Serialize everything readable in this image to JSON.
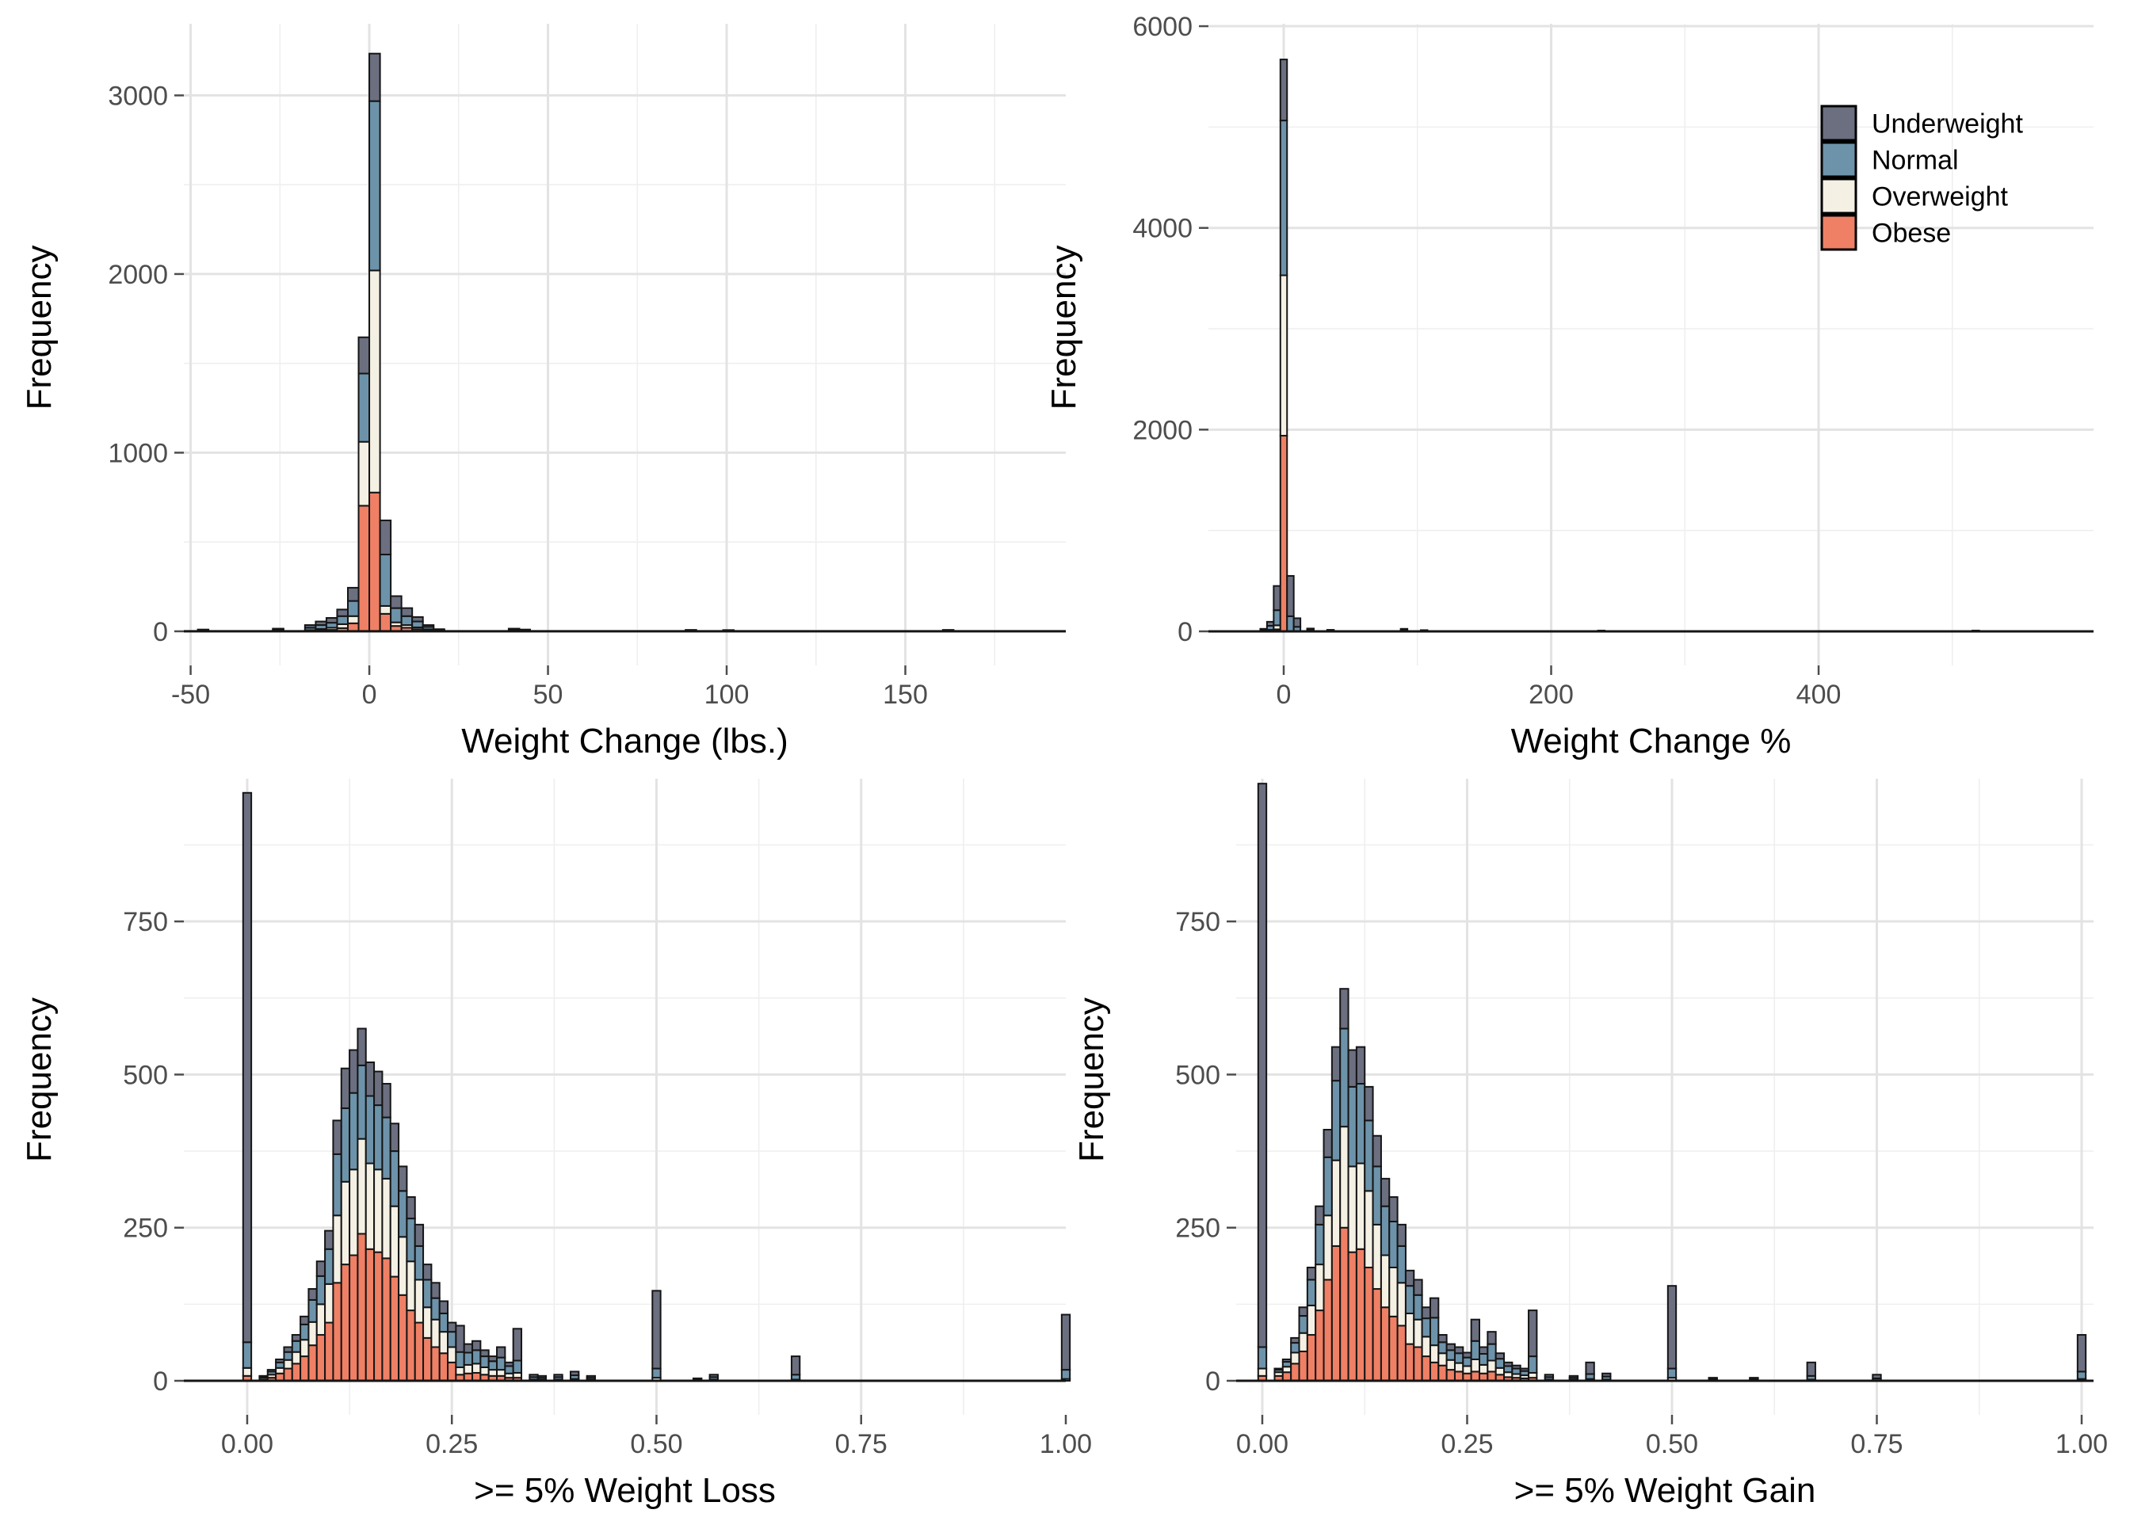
{
  "figure": {
    "kind": "2x2 stacked histogram grid (ggplot style)",
    "background": "#ffffff"
  },
  "palette": {
    "underweight": "#6B6F80",
    "normal": "#6D93AA",
    "overweight": "#F4F0E4",
    "obese": "#EF8065",
    "bar_stroke": "#151515",
    "axis_line": "#151515",
    "grid_major": "#E3E3E3",
    "grid_minor": "#EFEFEF",
    "tick_mark": "#4D4D4D",
    "tick_text": "#4D4D4D",
    "title_text": "#000000"
  },
  "legend": {
    "items": [
      {
        "label": "Underweight",
        "color_key": "underweight"
      },
      {
        "label": "Normal",
        "color_key": "normal"
      },
      {
        "label": "Overweight",
        "color_key": "overweight"
      },
      {
        "label": "Obese",
        "color_key": "obese"
      }
    ]
  },
  "chart_data": {
    "type": "stacked-histogram-grid",
    "stack_order_bottom_to_top": [
      "obese",
      "overweight",
      "normal",
      "underweight"
    ],
    "series_note": "each bin = [bin_start_x, obese, overweight, normal, underweight]",
    "panels": [
      {
        "id": "weight-change-lbs",
        "xlabel": "Weight Change (lbs.)",
        "ylabel": "Frequency",
        "binwidth": 3,
        "xlim": [
          -51.9,
          194.9
        ],
        "ylim": [
          -191,
          3401
        ],
        "x_ticks": [
          -50,
          0,
          50,
          100,
          150
        ],
        "x_tick_labels": [
          "-50",
          "0",
          "50",
          "100",
          "150"
        ],
        "x_minor": [
          -25,
          25,
          75,
          125,
          175
        ],
        "y_ticks": [
          0,
          1000,
          2000,
          3000
        ],
        "y_tick_labels": [
          "0",
          "1000",
          "2000",
          "3000"
        ],
        "y_minor": [
          500,
          1500,
          2500
        ],
        "bins": [
          [
            -48,
            0,
            0,
            3,
            7
          ],
          [
            -27,
            0,
            2,
            6,
            7
          ],
          [
            -18,
            2,
            4,
            14,
            15
          ],
          [
            -15,
            5,
            8,
            22,
            20
          ],
          [
            -12,
            8,
            12,
            28,
            27
          ],
          [
            -9,
            18,
            22,
            45,
            37
          ],
          [
            -6,
            45,
            40,
            85,
            74
          ],
          [
            -3,
            703,
            358,
            382,
            203
          ],
          [
            0,
            777,
            1243,
            948,
            266
          ],
          [
            3,
            98,
            44,
            288,
            191
          ],
          [
            6,
            30,
            20,
            80,
            67
          ],
          [
            9,
            20,
            15,
            50,
            45
          ],
          [
            12,
            12,
            10,
            33,
            25
          ],
          [
            15,
            5,
            6,
            14,
            10
          ],
          [
            18,
            2,
            2,
            4,
            4
          ],
          [
            39,
            0,
            2,
            6,
            7
          ],
          [
            42,
            0,
            2,
            4,
            4
          ],
          [
            88.5,
            0,
            0,
            3,
            5
          ],
          [
            99,
            0,
            0,
            3,
            4
          ],
          [
            160.5,
            0,
            0,
            3,
            5
          ]
        ]
      },
      {
        "id": "weight-change-pct",
        "xlabel": "Weight Change %",
        "ylabel": "Frequency",
        "binwidth": 5,
        "xlim": [
          -56.3,
          605.6
        ],
        "ylim": [
          -338,
          6024
        ],
        "x_ticks": [
          0,
          200,
          400
        ],
        "x_tick_labels": [
          "0",
          "200",
          "400"
        ],
        "x_minor": [
          100,
          300,
          500
        ],
        "y_ticks": [
          0,
          2000,
          4000,
          6000
        ],
        "y_tick_labels": [
          "0",
          "2000",
          "4000",
          "6000"
        ],
        "y_minor": [
          1000,
          3000,
          5000
        ],
        "bins": [
          [
            -17.5,
            0,
            0,
            10,
            15
          ],
          [
            -12.5,
            5,
            10,
            40,
            40
          ],
          [
            -7.5,
            20,
            40,
            150,
            240
          ],
          [
            -2.5,
            1940,
            1590,
            1535,
            605
          ],
          [
            2.5,
            0,
            0,
            150,
            400
          ],
          [
            7.5,
            0,
            0,
            45,
            85
          ],
          [
            17.5,
            0,
            0,
            12,
            16
          ],
          [
            32.5,
            0,
            0,
            6,
            9
          ],
          [
            87.5,
            0,
            0,
            10,
            15
          ],
          [
            102.5,
            0,
            0,
            5,
            7
          ],
          [
            235,
            0,
            0,
            3,
            5
          ],
          [
            515,
            0,
            0,
            3,
            5
          ]
        ]
      },
      {
        "id": "weight-loss-5pct",
        "xlabel": ">= 5% Weight Loss",
        "ylabel": "Frequency",
        "binwidth": 0.01,
        "xlim": [
          -0.0774,
          1.0
        ],
        "ylim": [
          -55.6,
          983
        ],
        "x_ticks": [
          0,
          0.25,
          0.5,
          0.75,
          1.0
        ],
        "x_tick_labels": [
          "0.00",
          "0.25",
          "0.50",
          "0.75",
          "1.00"
        ],
        "x_minor": [
          0.125,
          0.375,
          0.625,
          0.875
        ],
        "y_ticks": [
          0,
          250,
          500,
          750
        ],
        "y_tick_labels": [
          "0",
          "250",
          "500",
          "750"
        ],
        "y_minor": [
          125,
          375,
          625,
          875
        ],
        "bins": [
          [
            -0.005,
            8,
            13,
            42,
            897
          ],
          [
            0.015,
            2,
            3,
            2,
            1
          ],
          [
            0.025,
            5,
            5,
            5,
            3
          ],
          [
            0.035,
            12,
            9,
            9,
            5
          ],
          [
            0.045,
            20,
            14,
            13,
            8
          ],
          [
            0.055,
            28,
            19,
            18,
            10
          ],
          [
            0.065,
            40,
            27,
            25,
            13
          ],
          [
            0.075,
            58,
            38,
            36,
            18
          ],
          [
            0.085,
            75,
            50,
            46,
            24
          ],
          [
            0.095,
            95,
            63,
            57,
            30
          ],
          [
            0.105,
            160,
            110,
            100,
            55
          ],
          [
            0.115,
            190,
            135,
            120,
            65
          ],
          [
            0.125,
            205,
            140,
            125,
            70
          ],
          [
            0.135,
            240,
            155,
            120,
            60
          ],
          [
            0.145,
            215,
            140,
            110,
            55
          ],
          [
            0.155,
            210,
            135,
            105,
            55
          ],
          [
            0.165,
            200,
            130,
            100,
            55
          ],
          [
            0.175,
            170,
            115,
            90,
            45
          ],
          [
            0.185,
            140,
            95,
            75,
            40
          ],
          [
            0.195,
            115,
            80,
            70,
            35
          ],
          [
            0.205,
            95,
            70,
            55,
            35
          ],
          [
            0.215,
            70,
            50,
            45,
            25
          ],
          [
            0.225,
            55,
            45,
            35,
            25
          ],
          [
            0.235,
            45,
            35,
            30,
            20
          ],
          [
            0.245,
            30,
            25,
            25,
            15
          ],
          [
            0.255,
            10,
            12,
            25,
            43
          ],
          [
            0.265,
            12,
            14,
            20,
            14
          ],
          [
            0.275,
            13,
            15,
            22,
            15
          ],
          [
            0.285,
            10,
            12,
            18,
            10
          ],
          [
            0.295,
            8,
            10,
            14,
            8
          ],
          [
            0.305,
            8,
            10,
            20,
            17
          ],
          [
            0.315,
            5,
            7,
            12,
            6
          ],
          [
            0.325,
            5,
            8,
            20,
            52
          ],
          [
            0.345,
            0,
            2,
            4,
            4
          ],
          [
            0.355,
            0,
            2,
            3,
            3
          ],
          [
            0.375,
            0,
            2,
            4,
            4
          ],
          [
            0.395,
            0,
            3,
            6,
            6
          ],
          [
            0.415,
            0,
            2,
            3,
            3
          ],
          [
            0.495,
            0,
            5,
            15,
            127
          ],
          [
            0.545,
            0,
            1,
            2,
            1
          ],
          [
            0.565,
            0,
            2,
            4,
            4
          ],
          [
            0.665,
            0,
            2,
            8,
            30
          ],
          [
            0.995,
            0,
            3,
            15,
            90
          ]
        ]
      },
      {
        "id": "weight-gain-5pct",
        "xlabel": ">= 5% Weight Gain",
        "ylabel": "Frequency",
        "binwidth": 0.01,
        "xlim": [
          -0.0319,
          1.0145
        ],
        "ylim": [
          -55.6,
          983
        ],
        "x_ticks": [
          0,
          0.25,
          0.5,
          0.75,
          1.0
        ],
        "x_tick_labels": [
          "0.00",
          "0.25",
          "0.50",
          "0.75",
          "1.00"
        ],
        "x_minor": [
          0.125,
          0.375,
          0.625,
          0.875
        ],
        "y_ticks": [
          0,
          250,
          500,
          750
        ],
        "y_tick_labels": [
          "0",
          "250",
          "500",
          "750"
        ],
        "y_minor": [
          125,
          375,
          625,
          875
        ],
        "bins": [
          [
            -0.005,
            8,
            12,
            35,
            920
          ],
          [
            0.015,
            8,
            6,
            4,
            2
          ],
          [
            0.025,
            14,
            9,
            8,
            4
          ],
          [
            0.035,
            28,
            18,
            16,
            8
          ],
          [
            0.045,
            48,
            30,
            28,
            14
          ],
          [
            0.055,
            75,
            48,
            42,
            20
          ],
          [
            0.065,
            115,
            75,
            65,
            30
          ],
          [
            0.075,
            165,
            105,
            95,
            45
          ],
          [
            0.085,
            220,
            140,
            130,
            55
          ],
          [
            0.095,
            250,
            165,
            160,
            65
          ],
          [
            0.105,
            210,
            140,
            130,
            60
          ],
          [
            0.115,
            215,
            140,
            130,
            60
          ],
          [
            0.125,
            185,
            125,
            115,
            55
          ],
          [
            0.135,
            150,
            105,
            95,
            50
          ],
          [
            0.145,
            120,
            85,
            80,
            45
          ],
          [
            0.155,
            105,
            80,
            75,
            40
          ],
          [
            0.165,
            90,
            70,
            60,
            35
          ],
          [
            0.175,
            60,
            50,
            45,
            25
          ],
          [
            0.185,
            55,
            45,
            40,
            25
          ],
          [
            0.195,
            40,
            32,
            30,
            18
          ],
          [
            0.205,
            30,
            28,
            45,
            32
          ],
          [
            0.215,
            25,
            20,
            18,
            12
          ],
          [
            0.225,
            18,
            16,
            16,
            10
          ],
          [
            0.235,
            15,
            14,
            16,
            10
          ],
          [
            0.245,
            12,
            12,
            14,
            8
          ],
          [
            0.255,
            15,
            20,
            30,
            35
          ],
          [
            0.265,
            12,
            14,
            18,
            11
          ],
          [
            0.275,
            15,
            18,
            27,
            20
          ],
          [
            0.285,
            10,
            11,
            15,
            9
          ],
          [
            0.295,
            6,
            8,
            10,
            6
          ],
          [
            0.305,
            5,
            6,
            9,
            5
          ],
          [
            0.315,
            4,
            5,
            7,
            4
          ],
          [
            0.325,
            5,
            8,
            27,
            75
          ],
          [
            0.345,
            0,
            2,
            4,
            4
          ],
          [
            0.375,
            0,
            2,
            3,
            3
          ],
          [
            0.395,
            0,
            3,
            8,
            19
          ],
          [
            0.415,
            0,
            2,
            5,
            5
          ],
          [
            0.495,
            0,
            5,
            15,
            135
          ],
          [
            0.545,
            0,
            1,
            2,
            2
          ],
          [
            0.595,
            0,
            1,
            2,
            2
          ],
          [
            0.665,
            0,
            2,
            6,
            22
          ],
          [
            0.745,
            0,
            1,
            3,
            6
          ],
          [
            0.995,
            0,
            3,
            12,
            60
          ]
        ]
      }
    ]
  }
}
